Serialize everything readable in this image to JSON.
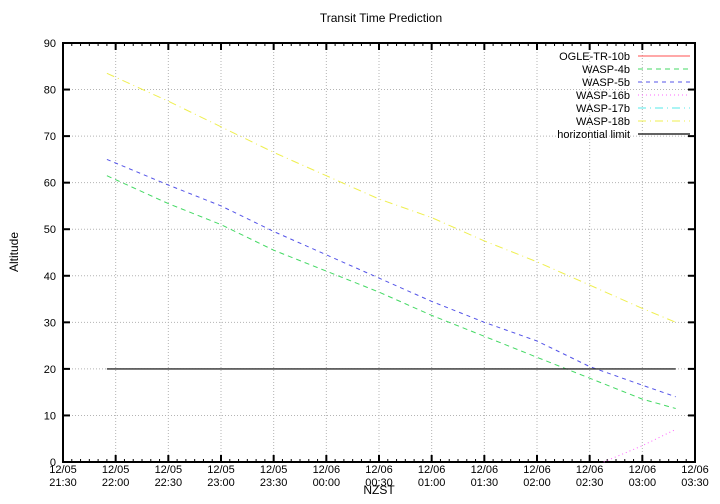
{
  "title": "Transit Time Prediction",
  "colors": {
    "background": "#ffffff",
    "axis": "#000000",
    "grid": "#b4b4b4"
  },
  "chart_data": {
    "type": "line",
    "title": "Transit Time Prediction",
    "xlabel": "NZST",
    "ylabel": "Altitude",
    "ylim": [
      0,
      90
    ],
    "xlim_minutes": [
      0,
      360
    ],
    "grid": true,
    "legend_position": "top-right-inside",
    "points_unit": {
      "x": "minutes after 12/05 21:30 NZST",
      "y": "altitude (degrees)"
    },
    "x_ticks": [
      {
        "t": 0,
        "date": "12/05",
        "time": "21:30"
      },
      {
        "t": 30,
        "date": "12/05",
        "time": "22:00"
      },
      {
        "t": 60,
        "date": "12/05",
        "time": "22:30"
      },
      {
        "t": 90,
        "date": "12/05",
        "time": "23:00"
      },
      {
        "t": 120,
        "date": "12/05",
        "time": "23:30"
      },
      {
        "t": 150,
        "date": "12/06",
        "time": "00:00"
      },
      {
        "t": 180,
        "date": "12/06",
        "time": "00:30"
      },
      {
        "t": 210,
        "date": "12/06",
        "time": "01:00"
      },
      {
        "t": 240,
        "date": "12/06",
        "time": "01:30"
      },
      {
        "t": 270,
        "date": "12/06",
        "time": "02:00"
      },
      {
        "t": 300,
        "date": "12/06",
        "time": "02:30"
      },
      {
        "t": 330,
        "date": "12/06",
        "time": "03:00"
      },
      {
        "t": 360,
        "date": "12/06",
        "time": "03:30"
      }
    ],
    "x_minor_tick_minutes": 5,
    "y_ticks": [
      0,
      10,
      20,
      30,
      40,
      50,
      60,
      70,
      80,
      90
    ],
    "series": [
      {
        "name": "OGLE-TR-10b",
        "color": "#ff5050",
        "dash": "solid",
        "points": []
      },
      {
        "name": "WASP-4b",
        "color": "#44d964",
        "dash": "5,4",
        "points": [
          [
            25,
            61.5
          ],
          [
            60,
            55.5
          ],
          [
            90,
            51
          ],
          [
            120,
            45.5
          ],
          [
            150,
            41
          ],
          [
            180,
            36.5
          ],
          [
            210,
            31.5
          ],
          [
            240,
            27
          ],
          [
            270,
            22.5
          ],
          [
            300,
            18
          ],
          [
            330,
            13.5
          ],
          [
            349,
            11.5
          ]
        ]
      },
      {
        "name": "WASP-5b",
        "color": "#5454e8",
        "dash": "4,4",
        "points": [
          [
            25,
            65
          ],
          [
            60,
            59.5
          ],
          [
            90,
            55
          ],
          [
            120,
            49.5
          ],
          [
            150,
            44.5
          ],
          [
            180,
            39.5
          ],
          [
            210,
            34.5
          ],
          [
            240,
            30
          ],
          [
            270,
            26
          ],
          [
            300,
            20.5
          ],
          [
            330,
            16.5
          ],
          [
            349,
            14
          ]
        ]
      },
      {
        "name": "WASP-16b",
        "color": "#ff66ff",
        "dash": "1,3",
        "points": [
          [
            308,
            0
          ],
          [
            330,
            3.5
          ],
          [
            349,
            7
          ]
        ]
      },
      {
        "name": "WASP-17b",
        "color": "#55e8e8",
        "dash": "8,4,1,4",
        "points": []
      },
      {
        "name": "WASP-18b",
        "color": "#efef4f",
        "dash": "8,4,1,4",
        "points": [
          [
            25,
            83.5
          ],
          [
            60,
            77.5
          ],
          [
            90,
            72
          ],
          [
            120,
            66.5
          ],
          [
            150,
            61.5
          ],
          [
            180,
            56.5
          ],
          [
            210,
            52.5
          ],
          [
            240,
            47.5
          ],
          [
            270,
            43
          ],
          [
            300,
            38
          ],
          [
            330,
            33
          ],
          [
            349,
            30
          ]
        ]
      },
      {
        "name": "horizontial limit",
        "color": "#2e2e2e",
        "dash": "solid",
        "points": [
          [
            25,
            20
          ],
          [
            349,
            20
          ]
        ]
      }
    ]
  }
}
